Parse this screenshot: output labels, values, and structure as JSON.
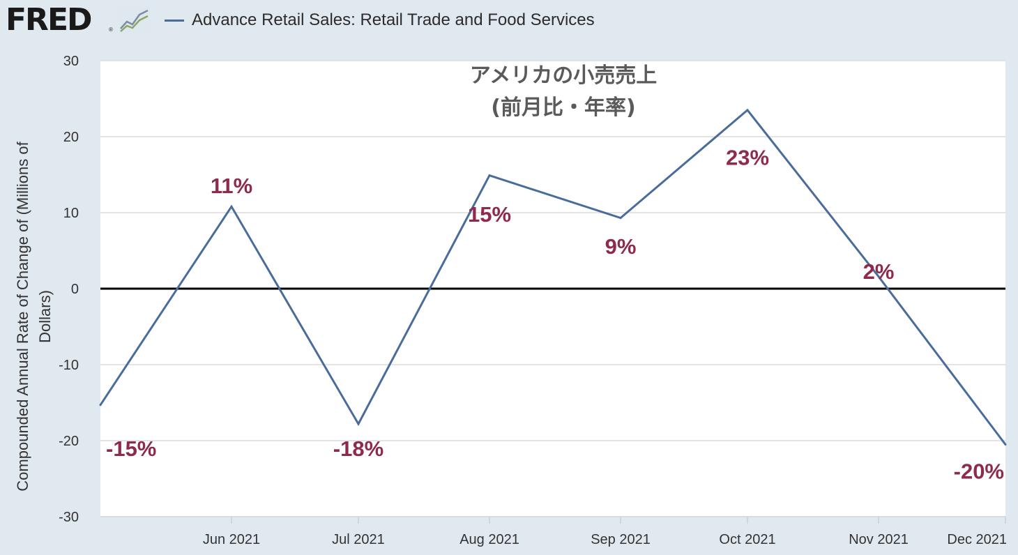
{
  "header": {
    "logo_text": "FRED",
    "logo_mark": "®",
    "logo_icon": "line-graph-icon",
    "legend_label": "Advance Retail Sales: Retail Trade and Food Services"
  },
  "colors": {
    "background": "#e1e9f0",
    "plot_background": "#ffffff",
    "series_line": "#4a6c9b",
    "zero_line": "#000000",
    "data_label": "#8e2a4d",
    "title": "#5a5a5a"
  },
  "chart_data": {
    "type": "line",
    "title": "アメリカの小売売上",
    "subtitle": "(前月比・年率)",
    "xlabel": "",
    "ylabel": "Compounded Annual Rate of Change of (Millions of Dollars)",
    "ylabel_lines": [
      "Compounded Annual Rate of Change of (Millions of",
      "Dollars)"
    ],
    "ylim": [
      -30,
      30
    ],
    "yticks": [
      "30",
      "20",
      "10",
      "0",
      "-10",
      "-20",
      "-30"
    ],
    "ytick_values": [
      30,
      20,
      10,
      0,
      -10,
      -20,
      -30
    ],
    "x_tick_labels": [
      "Jun 2021",
      "Jul 2021",
      "Aug 2021",
      "Sep 2021",
      "Oct 2021",
      "Nov 2021",
      "Dec 2021"
    ],
    "x_tick_dates": [
      "2021-06-01",
      "2021-07-01",
      "2021-08-01",
      "2021-09-01",
      "2021-10-01",
      "2021-11-01",
      "2021-12-01"
    ],
    "xlim": [
      "2021-05-01",
      "2021-12-01"
    ],
    "grid": true,
    "zero_line": true,
    "series": [
      {
        "name": "Advance Retail Sales: Retail Trade and Food Services",
        "x": [
          "2021-05-01",
          "2021-06-01",
          "2021-07-01",
          "2021-08-01",
          "2021-09-01",
          "2021-10-01",
          "2021-11-01",
          "2021-12-01"
        ],
        "values": [
          -15.3,
          10.8,
          -17.8,
          14.9,
          9.3,
          23.5,
          1.6,
          -20.5
        ]
      }
    ],
    "annotations": [
      {
        "text": "-15%",
        "x": "2021-05-01",
        "y": -21.0
      },
      {
        "text": "11%",
        "x": "2021-06-01",
        "y": 13.6
      },
      {
        "text": "-18%",
        "x": "2021-07-01",
        "y": -21.0
      },
      {
        "text": "15%",
        "x": "2021-08-01",
        "y": 9.8
      },
      {
        "text": "9%",
        "x": "2021-09-01",
        "y": 5.6
      },
      {
        "text": "23%",
        "x": "2021-10-01",
        "y": 17.3
      },
      {
        "text": "2%",
        "x": "2021-11-01",
        "y": 2.3
      },
      {
        "text": "-20%",
        "x": "2021-12-01",
        "y": -24.0
      }
    ]
  }
}
